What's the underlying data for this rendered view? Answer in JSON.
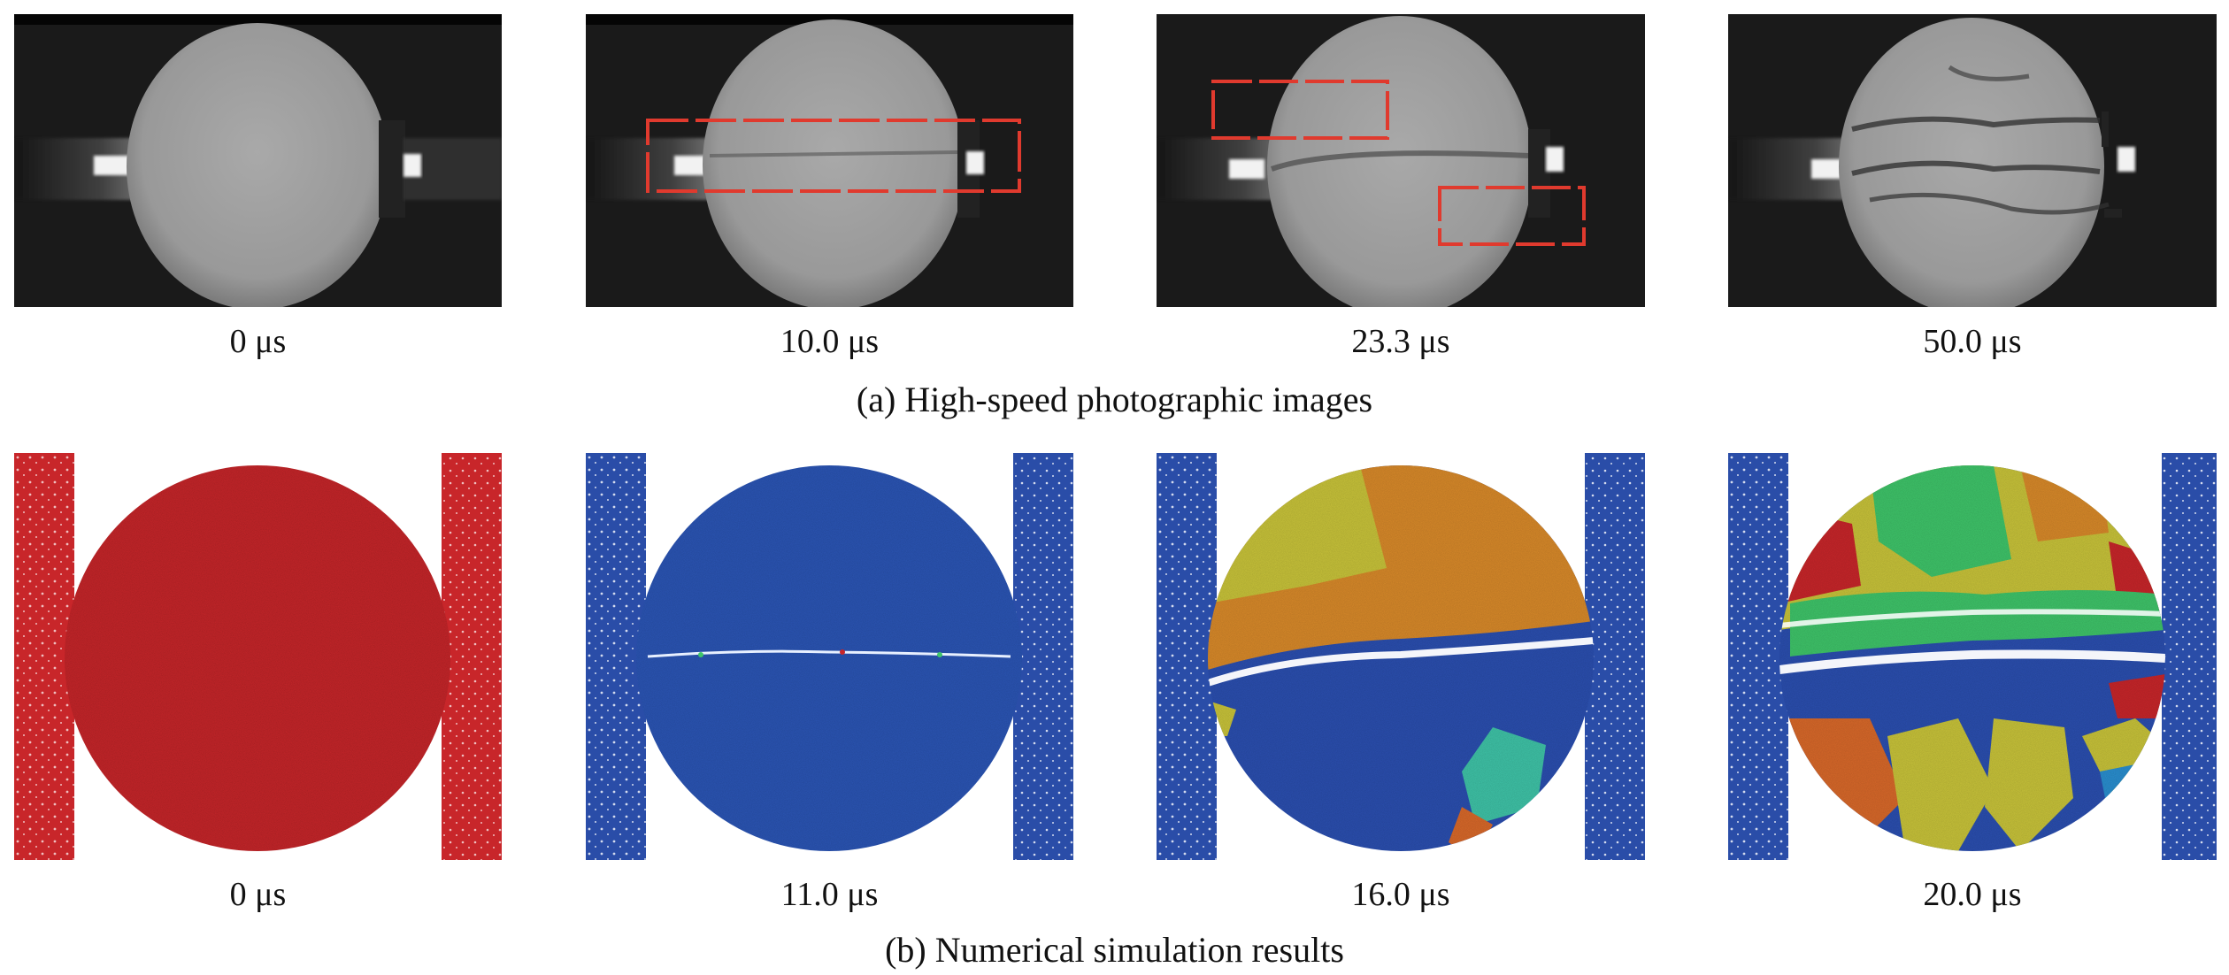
{
  "photographic": {
    "caption": "(a) High-speed photographic images",
    "frames": [
      {
        "time": "0 μs"
      },
      {
        "time": "10.0 μs"
      },
      {
        "time": "23.3 μs"
      },
      {
        "time": "50.0 μs"
      }
    ]
  },
  "simulation": {
    "caption": "(b) Numerical simulation results",
    "frames": [
      {
        "time": "0 μs"
      },
      {
        "time": "11.0 μs"
      },
      {
        "time": "16.0 μs"
      },
      {
        "time": "20.0 μs"
      }
    ]
  },
  "colors": {
    "highlight_box": "#e03a2e",
    "intact_red": "#c8262a",
    "intact_blue": "#2b55b5",
    "fragment_yellow": "#c9c43a",
    "fragment_orange": "#d98a2a",
    "fragment_green": "#3fc56a",
    "fragment_teal": "#3fc4a8",
    "bar_blue": "#2a4da8"
  }
}
